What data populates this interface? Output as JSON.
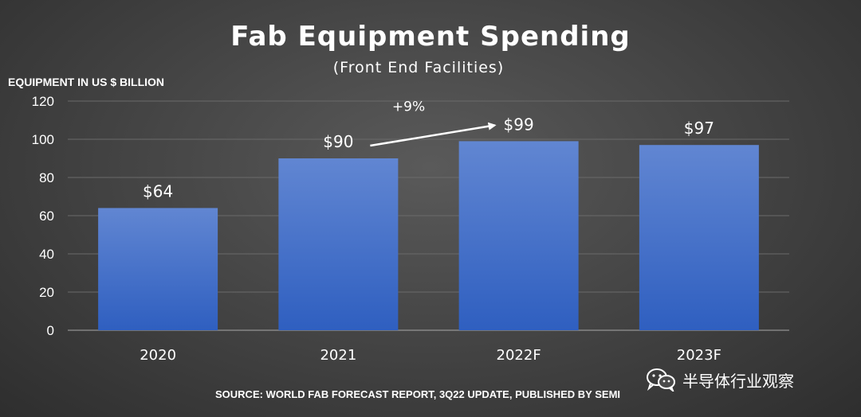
{
  "chart_data": {
    "type": "bar",
    "title": "Fab Equipment Spending",
    "subtitle": "(Front End Facilities)",
    "ylabel": "EQUIPMENT IN US $ BILLION",
    "xlabel": "",
    "categories": [
      "2020",
      "2021",
      "2022F",
      "2023F"
    ],
    "values": [
      64,
      90,
      99,
      97
    ],
    "data_labels": [
      "$64",
      "$90",
      "$99",
      "$97"
    ],
    "ylim": [
      0,
      120
    ],
    "yticks": [
      0,
      20,
      40,
      60,
      80,
      100,
      120
    ],
    "grid": true,
    "bar_color": "#3f6fc8",
    "annotation": {
      "text": "+9%",
      "from_category": "2021",
      "to_category": "2022F",
      "style": "arrow"
    },
    "source": "SOURCE: WORLD FAB FORECAST REPORT, 3Q22 UPDATE, PUBLISHED BY SEMI"
  },
  "watermark": {
    "text": "半导体行业观察",
    "icon": "wechat-icon"
  }
}
